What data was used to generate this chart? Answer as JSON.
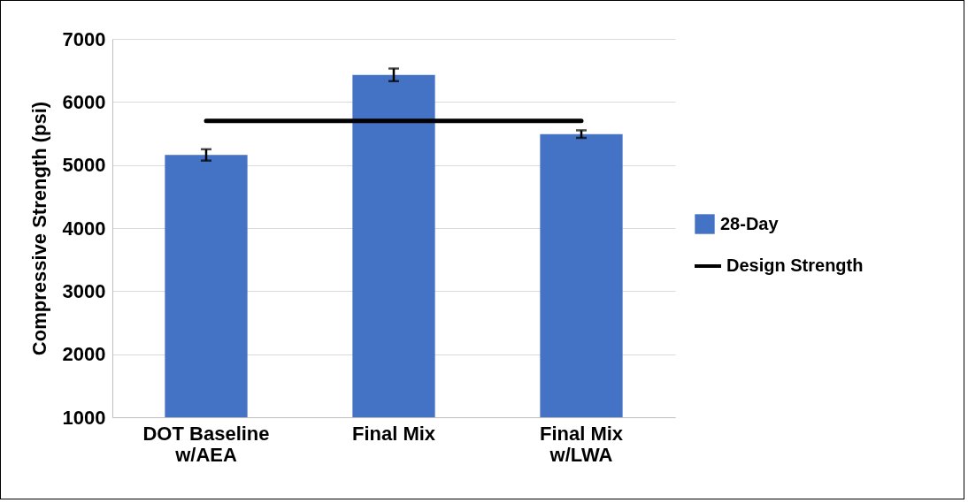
{
  "chart_data": {
    "type": "bar",
    "ylabel": "Compressive Strength (psi)",
    "categories": [
      "DOT Baseline w/AEA",
      "Final Mix",
      "Final Mix w/LWA"
    ],
    "series": [
      {
        "name": "28-Day",
        "color": "#4472c4",
        "values": [
          5160,
          6430,
          5490
        ],
        "errors": [
          90,
          100,
          60
        ]
      },
      {
        "name": "Design Strength",
        "type": "line",
        "color": "#000000",
        "values": [
          5700,
          5700,
          5700
        ]
      }
    ],
    "ylim": [
      1000,
      7000
    ],
    "yticks": [
      1000,
      2000,
      3000,
      4000,
      5000,
      6000,
      7000
    ],
    "grid": "y",
    "legend": "right"
  }
}
